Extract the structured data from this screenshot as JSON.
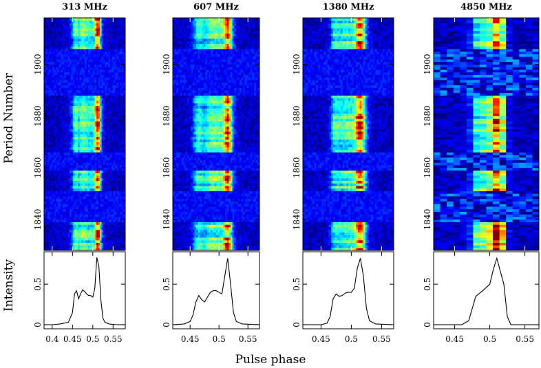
{
  "chart_data": {
    "type": "heatmap",
    "description_axes": {
      "ylabel_top": "Period Number",
      "ylabel_bottom": "Intensity",
      "xlabel": "Pulse phase"
    },
    "heatmap_ylim": [
      1828,
      1918
    ],
    "profile_ylim": [
      -0.05,
      0.9
    ],
    "y_ticks": [
      1840,
      1860,
      1880,
      1900
    ],
    "profile_y_ticks": [
      0,
      0.5
    ],
    "panels": [
      {
        "title": "313 MHz",
        "xlim": [
          0.38,
          0.58
        ],
        "x_ticks": [
          0.4,
          0.45,
          0.5,
          0.55
        ],
        "x_tick_labels": [
          "0.4",
          "0.45",
          "0.5",
          "0.55"
        ],
        "resolution": "fine",
        "profile": {
          "x": [
            0.38,
            0.4,
            0.42,
            0.44,
            0.45,
            0.455,
            0.46,
            0.465,
            0.47,
            0.475,
            0.48,
            0.485,
            0.49,
            0.495,
            0.5,
            0.505,
            0.51,
            0.515,
            0.52,
            0.525,
            0.53,
            0.54,
            0.56,
            0.58
          ],
          "y": [
            0.0,
            0.0,
            0.01,
            0.03,
            0.15,
            0.38,
            0.42,
            0.32,
            0.38,
            0.43,
            0.41,
            0.38,
            0.36,
            0.36,
            0.34,
            0.45,
            0.83,
            0.72,
            0.3,
            0.08,
            0.03,
            0.01,
            0.0,
            0.0
          ]
        }
      },
      {
        "title": "607 MHz",
        "xlim": [
          0.42,
          0.57
        ],
        "x_ticks": [
          0.45,
          0.5,
          0.55
        ],
        "x_tick_labels": [
          "0.45",
          "0.5",
          "0.55"
        ],
        "resolution": "fine",
        "profile": {
          "x": [
            0.42,
            0.44,
            0.45,
            0.455,
            0.46,
            0.465,
            0.47,
            0.475,
            0.48,
            0.485,
            0.49,
            0.495,
            0.5,
            0.505,
            0.51,
            0.515,
            0.52,
            0.525,
            0.53,
            0.54,
            0.57
          ],
          "y": [
            0.0,
            0.01,
            0.04,
            0.12,
            0.28,
            0.36,
            0.31,
            0.28,
            0.34,
            0.4,
            0.42,
            0.42,
            0.4,
            0.38,
            0.6,
            0.82,
            0.5,
            0.15,
            0.04,
            0.01,
            0.0
          ]
        }
      },
      {
        "title": "1380 MHz",
        "xlim": [
          0.42,
          0.57
        ],
        "x_ticks": [
          0.45,
          0.5,
          0.55
        ],
        "x_tick_labels": [
          "0.45",
          "0.5",
          "0.55"
        ],
        "resolution": "fine",
        "profile": {
          "x": [
            0.42,
            0.45,
            0.46,
            0.465,
            0.47,
            0.475,
            0.48,
            0.485,
            0.49,
            0.495,
            0.5,
            0.505,
            0.51,
            0.515,
            0.52,
            0.525,
            0.53,
            0.54,
            0.57
          ],
          "y": [
            0.0,
            0.0,
            0.02,
            0.1,
            0.32,
            0.38,
            0.35,
            0.36,
            0.39,
            0.4,
            0.4,
            0.45,
            0.7,
            0.82,
            0.6,
            0.2,
            0.05,
            0.01,
            0.0
          ]
        }
      },
      {
        "title": "4850 MHz",
        "xlim": [
          0.42,
          0.57
        ],
        "x_ticks": [
          0.45,
          0.5,
          0.55
        ],
        "x_tick_labels": [
          "0.45",
          "0.5",
          "0.55"
        ],
        "resolution": "coarse",
        "profile": {
          "x": [
            0.42,
            0.46,
            0.47,
            0.48,
            0.49,
            0.5,
            0.505,
            0.51,
            0.52,
            0.525,
            0.53,
            0.57
          ],
          "y": [
            0.0,
            0.0,
            0.05,
            0.35,
            0.42,
            0.5,
            0.68,
            0.82,
            0.5,
            0.1,
            0.0,
            0.0
          ]
        }
      }
    ],
    "pulse_blocks": [
      {
        "start": 1828,
        "end": 1838
      },
      {
        "start": 1851,
        "end": 1858
      },
      {
        "start": 1866,
        "end": 1887
      },
      {
        "start": 1906,
        "end": 1918
      }
    ]
  }
}
